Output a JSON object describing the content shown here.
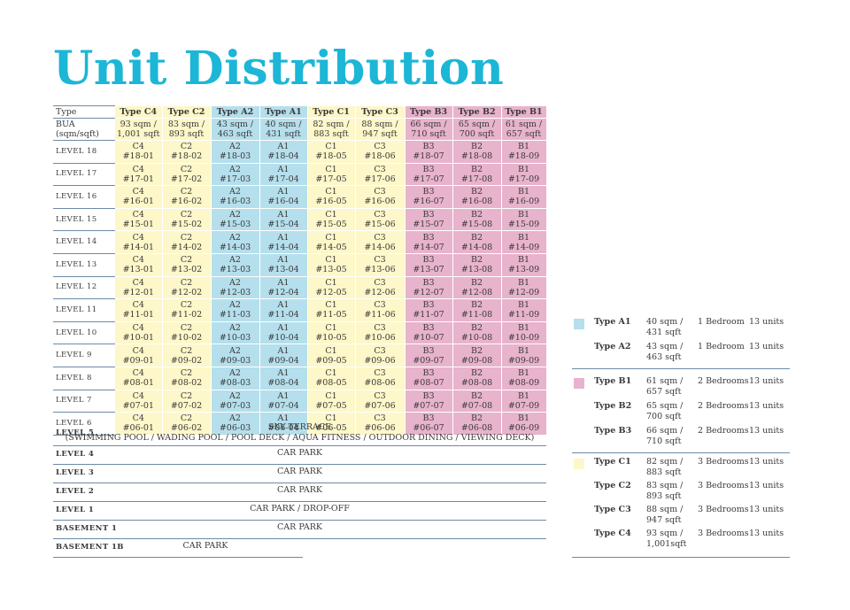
{
  "title": "Unit Distribution",
  "header": {
    "type_label": "Type",
    "bua_label_1": "BUA",
    "bua_label_2": "(sqm/sqft)",
    "columns": [
      {
        "type": "Type C4",
        "sqm": "93 sqm /",
        "sqft": "1,001 sqft",
        "color": "yellow",
        "code": "C4",
        "unit": "01"
      },
      {
        "type": "Type C2",
        "sqm": "83 sqm /",
        "sqft": "893 sqft",
        "color": "yellow",
        "code": "C2",
        "unit": "02"
      },
      {
        "type": "Type A2",
        "sqm": "43 sqm /",
        "sqft": "463 sqft",
        "color": "blue",
        "code": "A2",
        "unit": "03"
      },
      {
        "type": "Type A1",
        "sqm": "40 sqm /",
        "sqft": "431 sqft",
        "color": "blue",
        "code": "A1",
        "unit": "04"
      },
      {
        "type": "Type C1",
        "sqm": "82 sqm /",
        "sqft": "883 sqft",
        "color": "yellow",
        "code": "C1",
        "unit": "05"
      },
      {
        "type": "Type C3",
        "sqm": "88 sqm /",
        "sqft": "947 sqft",
        "color": "yellow",
        "code": "C3",
        "unit": "06"
      },
      {
        "type": "Type B3",
        "sqm": "66 sqm /",
        "sqft": "710 sqft",
        "color": "pink",
        "code": "B3",
        "unit": "07"
      },
      {
        "type": "Type B2",
        "sqm": "65 sqm /",
        "sqft": "700 sqft",
        "color": "pink",
        "code": "B2",
        "unit": "08"
      },
      {
        "type": "Type B1",
        "sqm": "61 sqm /",
        "sqft": "657 sqft",
        "color": "pink",
        "code": "B1",
        "unit": "09"
      }
    ]
  },
  "levels": [
    {
      "label": "LEVEL 18",
      "floor": "18"
    },
    {
      "label": "LEVEL 17",
      "floor": "17"
    },
    {
      "label": "LEVEL 16",
      "floor": "16"
    },
    {
      "label": "LEVEL 15",
      "floor": "15"
    },
    {
      "label": "LEVEL 14",
      "floor": "14"
    },
    {
      "label": "LEVEL 13",
      "floor": "13"
    },
    {
      "label": "LEVEL 12",
      "floor": "12"
    },
    {
      "label": "LEVEL 11",
      "floor": "11"
    },
    {
      "label": "LEVEL 10",
      "floor": "10"
    },
    {
      "label": "LEVEL 9",
      "floor": "09"
    },
    {
      "label": "LEVEL 8",
      "floor": "08"
    },
    {
      "label": "LEVEL 7",
      "floor": "07"
    },
    {
      "label": "LEVEL 6",
      "floor": "06"
    }
  ],
  "lower_levels": [
    {
      "label": "LEVEL 5",
      "text1": "SKY TERRACE",
      "text2": "(SWIMMING POOL / WADING POOL / POOL DECK / AQUA FITNESS / OUTDOOR DINING / VIEWING DECK)"
    },
    {
      "label": "LEVEL 4",
      "text1": "CAR PARK",
      "text2": ""
    },
    {
      "label": "LEVEL 3",
      "text1": "CAR PARK",
      "text2": ""
    },
    {
      "label": "LEVEL 2",
      "text1": "CAR PARK",
      "text2": ""
    },
    {
      "label": "LEVEL 1",
      "text1": "CAR PARK / DROP-OFF",
      "text2": ""
    },
    {
      "label": "BASEMENT 1",
      "text1": "CAR PARK",
      "text2": ""
    },
    {
      "label": "BASEMENT 1B",
      "text1": "CAR PARK",
      "text2": ""
    }
  ],
  "colors": {
    "yellow": "#fdf7c9",
    "blue": "#b5dfec",
    "pink": "#e8b3cc",
    "title": "#1cb6d6"
  },
  "legend": [
    {
      "color": "blue",
      "items": [
        {
          "type": "Type A1",
          "sqm": "40 sqm /",
          "sqft": "431 sqft",
          "bed": "1 Bedroom",
          "units": "13 units"
        },
        {
          "type": "Type A2",
          "sqm": "43 sqm /",
          "sqft": "463 sqft",
          "bed": "1 Bedroom",
          "units": "13 units"
        }
      ]
    },
    {
      "color": "pink",
      "items": [
        {
          "type": "Type B1",
          "sqm": "61 sqm /",
          "sqft": "657 sqft",
          "bed": "2 Bedrooms",
          "units": "13 units"
        },
        {
          "type": "Type B2",
          "sqm": "65 sqm /",
          "sqft": "700 sqft",
          "bed": "2 Bedrooms",
          "units": "13 units"
        },
        {
          "type": "Type B3",
          "sqm": "66 sqm /",
          "sqft": "710 sqft",
          "bed": "2 Bedrooms",
          "units": "13 units"
        }
      ]
    },
    {
      "color": "yellow",
      "items": [
        {
          "type": "Type C1",
          "sqm": "82 sqm /",
          "sqft": "883 sqft",
          "bed": "3 Bedrooms",
          "units": "13 units"
        },
        {
          "type": "Type C2",
          "sqm": "83 sqm /",
          "sqft": "893 sqft",
          "bed": "3 Bedrooms",
          "units": "13 units"
        },
        {
          "type": "Type C3",
          "sqm": "88 sqm /",
          "sqft": "947 sqft",
          "bed": "3 Bedrooms",
          "units": "13 units"
        },
        {
          "type": "Type C4",
          "sqm": "93 sqm /",
          "sqft": "1,001sqft",
          "bed": "3 Bedrooms",
          "units": "13 units"
        }
      ]
    }
  ]
}
